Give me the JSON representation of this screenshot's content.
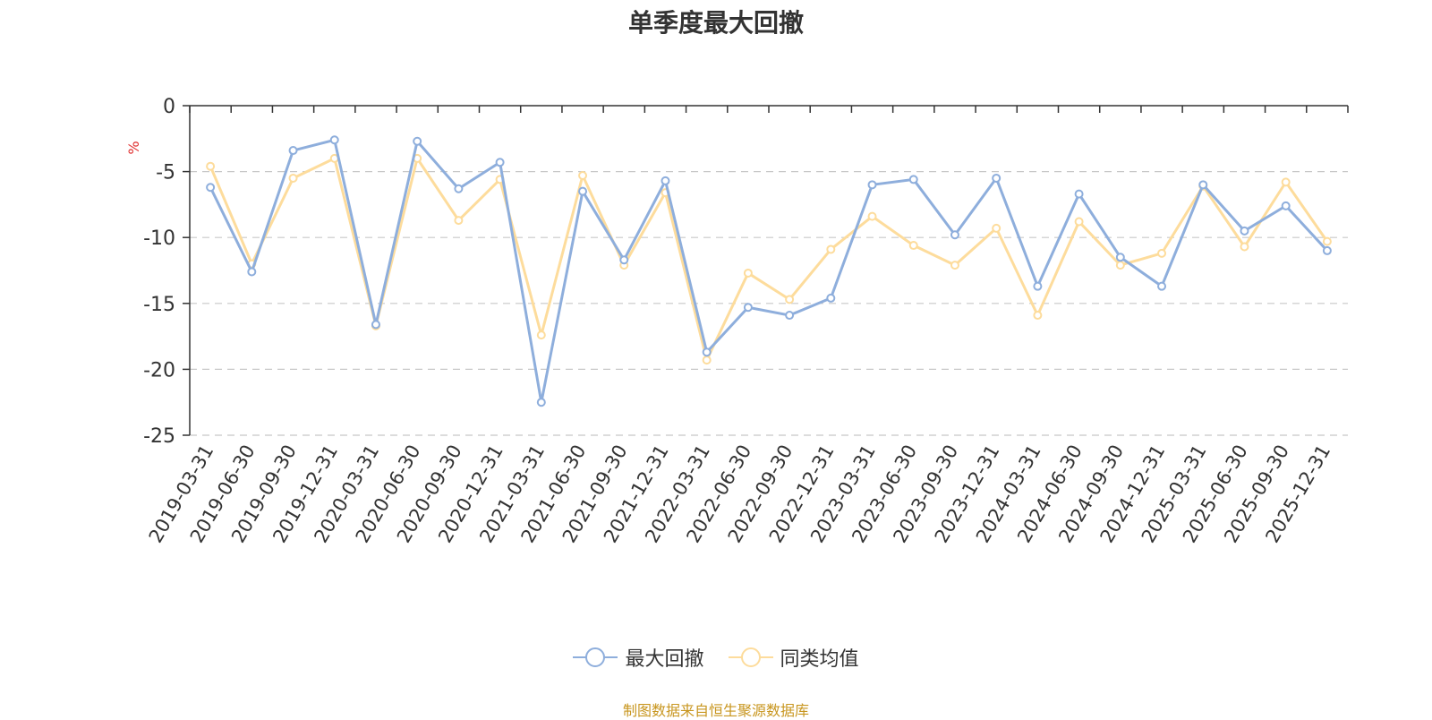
{
  "chart_data": {
    "type": "line",
    "title": "单季度最大回撤",
    "ylabel": "%",
    "ylim": [
      -25,
      0
    ],
    "yticks": [
      0,
      -5,
      -10,
      -15,
      -20,
      -25
    ],
    "grid": true,
    "legend_position": "bottom",
    "categories": [
      "2019-03-31",
      "2019-06-30",
      "2019-09-30",
      "2019-12-31",
      "2020-03-31",
      "2020-06-30",
      "2020-09-30",
      "2020-12-31",
      "2021-03-31",
      "2021-06-30",
      "2021-09-30",
      "2021-12-31",
      "2022-03-31",
      "2022-06-30",
      "2022-09-30",
      "2022-12-31",
      "2023-03-31",
      "2023-06-30",
      "2023-09-30",
      "2023-12-31",
      "2024-03-31",
      "2024-06-30",
      "2024-09-30",
      "2024-12-31",
      "2025-03-31",
      "2025-06-30",
      "2025-09-30",
      "2025-12-31"
    ],
    "series": [
      {
        "name": "最大回撤",
        "color": "#8eaedc",
        "values": [
          -6.2,
          -12.6,
          -3.4,
          -2.6,
          -16.6,
          -2.7,
          -6.3,
          -4.3,
          -22.5,
          -6.5,
          -11.7,
          -5.7,
          -18.7,
          -15.3,
          -15.9,
          -14.6,
          -6.0,
          -5.6,
          -9.8,
          -5.5,
          -13.7,
          -6.7,
          -11.5,
          -13.7,
          -6.0,
          -9.5,
          -7.6,
          -11.0
        ]
      },
      {
        "name": "同类均值",
        "color": "#fddc9c",
        "values": [
          -4.6,
          -12.0,
          -5.5,
          -4.0,
          -16.7,
          -4.0,
          -8.7,
          -5.6,
          -17.4,
          -5.3,
          -12.1,
          -6.6,
          -19.3,
          -12.7,
          -14.7,
          -10.9,
          -8.4,
          -10.6,
          -12.1,
          -9.3,
          -15.9,
          -8.8,
          -12.1,
          -11.2,
          -6.1,
          -10.7,
          -5.8,
          -10.3
        ]
      }
    ]
  },
  "source_note": "制图数据来自恒生聚源数据库"
}
